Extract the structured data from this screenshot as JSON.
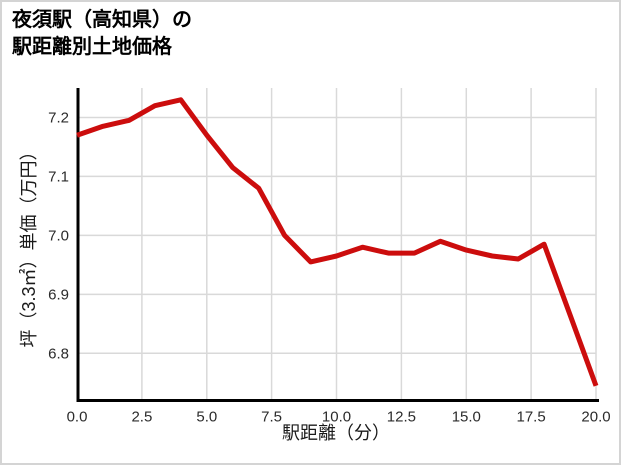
{
  "header": {
    "title_line1": "夜須駅（高知県）の",
    "title_line2": "駅距離別土地価格"
  },
  "chart_data": {
    "type": "line",
    "title": "夜須駅（高知県）の駅距離別土地価格",
    "xlabel": "駅距離（分）",
    "ylabel": "坪（3.3㎡）単価（万円）",
    "x": [
      0,
      1,
      2,
      3,
      4,
      5,
      6,
      7,
      8,
      9,
      10,
      11,
      12,
      13,
      14,
      15,
      16,
      17,
      18,
      19,
      20
    ],
    "y": [
      7.17,
      7.185,
      7.195,
      7.22,
      7.23,
      7.17,
      7.115,
      7.08,
      7.0,
      6.955,
      6.965,
      6.98,
      6.97,
      6.97,
      6.99,
      6.975,
      6.965,
      6.96,
      6.985,
      6.865,
      6.745
    ],
    "xlim": [
      0,
      20
    ],
    "ylim": [
      6.72,
      7.25
    ],
    "x_ticks": [
      0,
      2.5,
      5,
      7.5,
      10,
      12.5,
      15,
      17.5,
      20
    ],
    "x_tick_labels": [
      "0.0",
      "2.5",
      "5.0",
      "7.5",
      "10.0",
      "12.5",
      "15.0",
      "17.5",
      "20.0"
    ],
    "y_ticks": [
      6.8,
      6.9,
      7.0,
      7.1,
      7.2
    ],
    "y_tick_labels": [
      "6.8",
      "6.9",
      "7.0",
      "7.1",
      "7.2"
    ],
    "line_color": "#cc0d0d",
    "grid": true,
    "grid_color": "#d9d9d9",
    "axis_color": "#000000",
    "legend": "none"
  }
}
